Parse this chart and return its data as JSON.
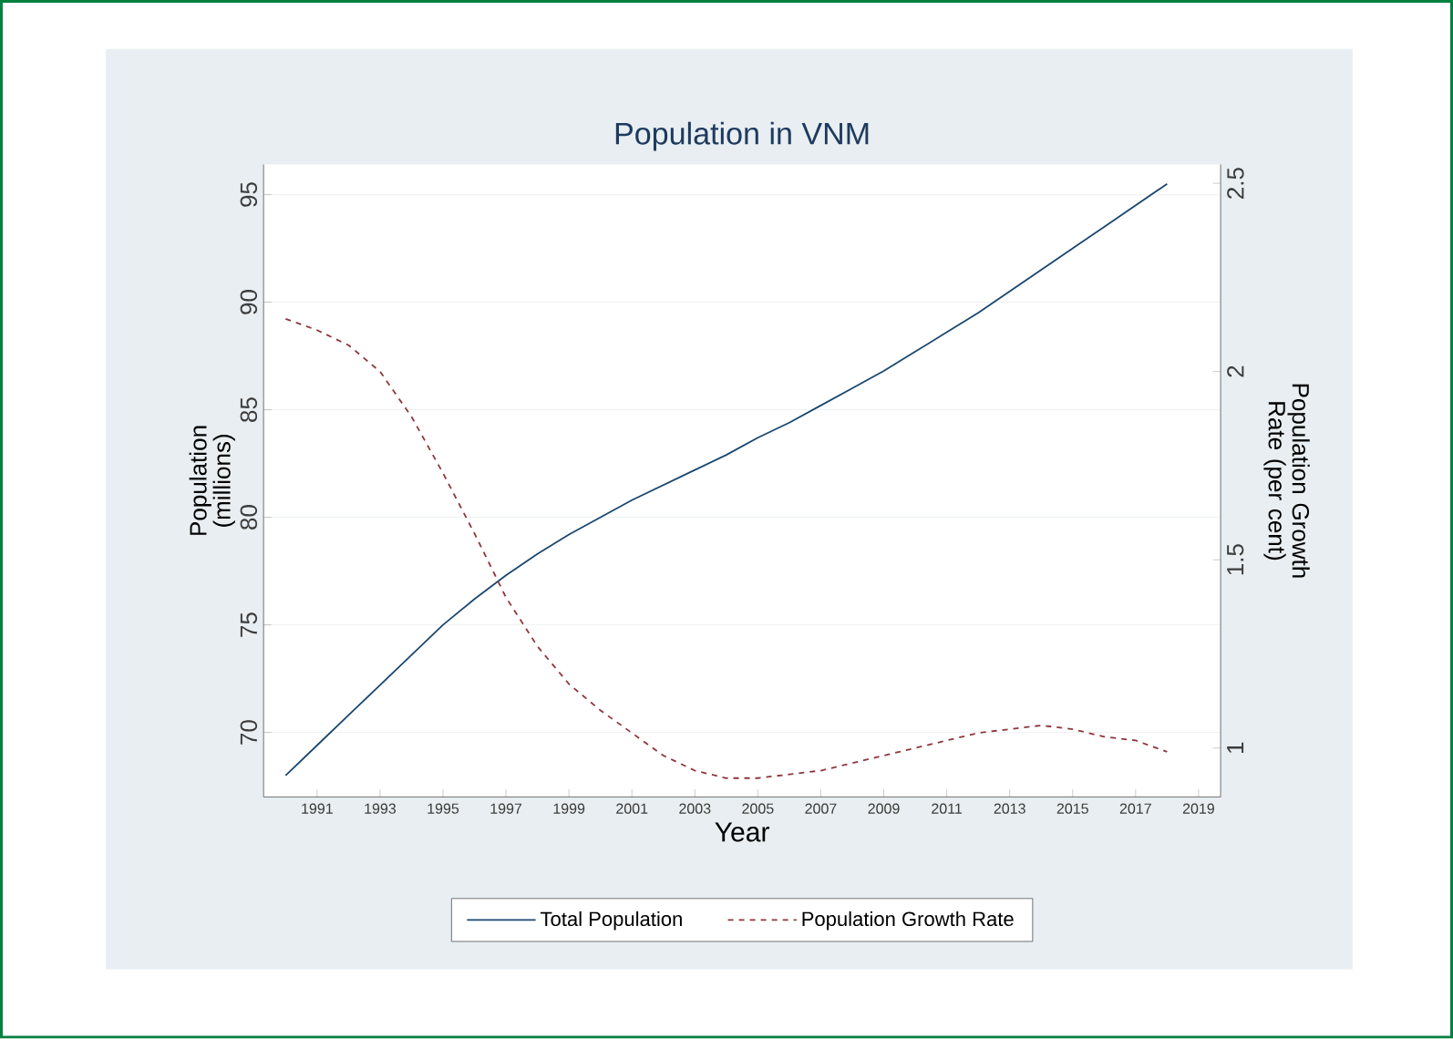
{
  "chart_data": {
    "type": "line",
    "title": "Population in VNM",
    "xlabel": "Year",
    "ylabel": "Population (millions)",
    "y2label": "Population Growth Rate (per cent)",
    "x": [
      1990,
      1991,
      1992,
      1993,
      1994,
      1995,
      1996,
      1997,
      1998,
      1999,
      2000,
      2001,
      2002,
      2003,
      2004,
      2005,
      2006,
      2007,
      2008,
      2009,
      2010,
      2011,
      2012,
      2013,
      2014,
      2015,
      2016,
      2017,
      2018
    ],
    "series": [
      {
        "name": "Total Population",
        "color": "#1a476f",
        "line_style": "solid",
        "values": [
          68.0,
          69.4,
          70.8,
          72.2,
          73.6,
          75.0,
          76.2,
          77.3,
          78.3,
          79.2,
          80.0,
          80.8,
          81.5,
          82.2,
          82.9,
          83.7,
          84.4,
          85.2,
          86.0,
          86.8,
          87.7,
          88.6,
          89.5,
          90.5,
          91.5,
          92.5,
          93.5,
          94.5,
          95.5
        ]
      },
      {
        "name": "Population Growth Rate",
        "color": "#90353b",
        "line_style": "dashed",
        "axis": "y2",
        "values": [
          2.14,
          2.11,
          2.07,
          2.0,
          1.88,
          1.73,
          1.57,
          1.4,
          1.27,
          1.17,
          1.1,
          1.04,
          0.98,
          0.94,
          0.92,
          0.92,
          0.93,
          0.94,
          0.96,
          0.98,
          1.0,
          1.02,
          1.04,
          1.05,
          1.06,
          1.05,
          1.03,
          1.02,
          0.99
        ]
      }
    ],
    "xlim": [
      1989.3,
      2019.7
    ],
    "xticks": [
      1991,
      1993,
      1995,
      1997,
      1999,
      2001,
      2003,
      2005,
      2007,
      2009,
      2011,
      2013,
      2015,
      2017,
      2019
    ],
    "ylim": [
      67.0,
      96.4
    ],
    "yticks": [
      70,
      75,
      80,
      85,
      90,
      95
    ],
    "y2lim": [
      0.87,
      2.55
    ],
    "y2ticks": [
      1,
      1.5,
      2,
      2.5
    ],
    "grid": "y",
    "legend": "bottom"
  }
}
